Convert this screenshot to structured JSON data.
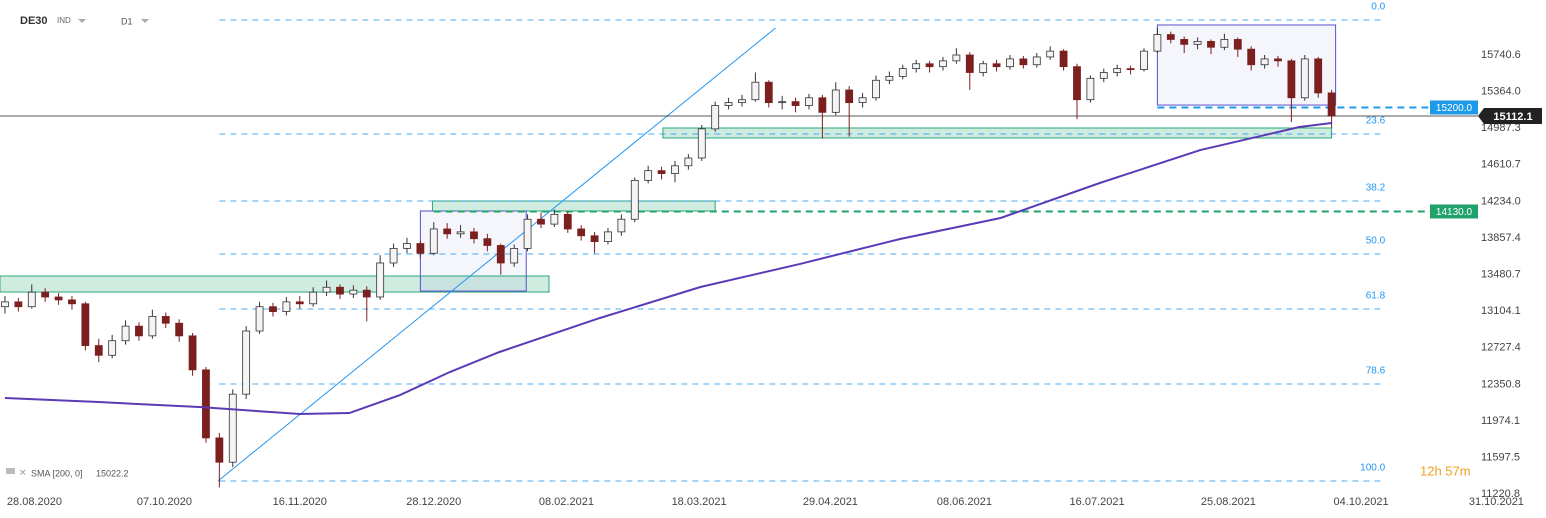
{
  "chart_data": {
    "type": "candlestick",
    "title": "DE30",
    "instrument_type": "IND",
    "timeframe": "D1",
    "xlim": [
      -0.37,
      115.0
    ],
    "xticks": [
      {
        "value": 2.2,
        "label": "28.08.2020"
      },
      {
        "value": 11.9,
        "label": "07.10.2020"
      },
      {
        "value": 22,
        "label": "16.11.2020"
      },
      {
        "value": 32,
        "label": "28.12.2020"
      },
      {
        "value": 41.9,
        "label": "08.02.2021"
      },
      {
        "value": 51.8,
        "label": "18.03.2021"
      },
      {
        "value": 61.6,
        "label": "29.04.2021"
      },
      {
        "value": 71.6,
        "label": "08.06.2021"
      },
      {
        "value": 81.5,
        "label": "16.07.2021"
      },
      {
        "value": 91.3,
        "label": "25.08.2021"
      },
      {
        "value": 101.2,
        "label": "04.10.2021"
      },
      {
        "value": 111.3,
        "label": "31.10.2021"
      }
    ],
    "ylim": [
      11264,
      16306
    ],
    "yticks": [
      15740.6,
      {
        "value": 15364,
        "label": "15364.0"
      },
      14987.3,
      14610.7,
      {
        "value": 14234,
        "label": "14234.0"
      },
      13857.4,
      13480.7,
      13104.1,
      12727.4,
      12350.8,
      11974.1,
      11597.5,
      11220.8
    ],
    "up_color": "#f4f4f4",
    "down_color": "#7b1f1f",
    "candles": {
      "open": [
        13150,
        13200,
        13150,
        13300,
        13250,
        13220,
        13180,
        12750,
        12650,
        12800,
        12950,
        12850,
        13050,
        12980,
        12850,
        12500,
        11800,
        11550,
        12250,
        12900,
        13150,
        13100,
        13200,
        13180,
        13300,
        13350,
        13280,
        13320,
        13250,
        13600,
        13750,
        13800,
        13700,
        13950,
        13900,
        13920,
        13850,
        13780,
        13600,
        13750,
        14050,
        14000,
        14100,
        13950,
        13880,
        13820,
        13920,
        14050,
        14450,
        14550,
        14520,
        14600,
        14680,
        14980,
        15220,
        15250,
        15280,
        15460,
        15250,
        15260,
        15220,
        15300,
        15150,
        15380,
        15250,
        15300,
        15480,
        15520,
        15600,
        15650,
        15620,
        15680,
        15740,
        15560,
        15650,
        15620,
        15700,
        15640,
        15720,
        15780,
        15620,
        15280,
        15500,
        15560,
        15600,
        15590,
        15780,
        15950,
        15900,
        15850,
        15880,
        15820,
        15900,
        15800,
        15640,
        15700,
        15680,
        15300,
        15700,
        15350
      ],
      "high": [
        13260,
        13240,
        13380,
        13340,
        13290,
        13260,
        13200,
        12820,
        12860,
        13010,
        12990,
        13120,
        13090,
        13020,
        12880,
        12530,
        11850,
        12300,
        12950,
        13200,
        13190,
        13250,
        13260,
        13350,
        13420,
        13380,
        13370,
        13360,
        13680,
        13800,
        13860,
        13830,
        14020,
        14010,
        13990,
        13960,
        13900,
        13800,
        13790,
        14100,
        14120,
        14150,
        14130,
        13990,
        13920,
        13960,
        14100,
        14480,
        14600,
        14590,
        14650,
        14720,
        15020,
        15260,
        15300,
        15330,
        15560,
        15480,
        15320,
        15300,
        15340,
        15330,
        15460,
        15420,
        15350,
        15530,
        15570,
        15640,
        15690,
        15680,
        15720,
        15810,
        15770,
        15680,
        15690,
        15740,
        15730,
        15760,
        15830,
        15800,
        15650,
        15530,
        15600,
        15640,
        15630,
        15810,
        16020,
        15980,
        15930,
        15920,
        15900,
        15960,
        15920,
        15830,
        15740,
        15730,
        15700,
        15740,
        15720,
        15380
      ],
      "low": [
        13080,
        13100,
        13130,
        13200,
        13170,
        13120,
        12700,
        12580,
        12620,
        12760,
        12800,
        12820,
        12930,
        12790,
        12440,
        11750,
        11290,
        11500,
        12200,
        12870,
        13050,
        13060,
        13130,
        13150,
        13260,
        13230,
        13240,
        13000,
        13220,
        13560,
        13700,
        13650,
        13680,
        13850,
        13860,
        13800,
        13720,
        13480,
        13560,
        13720,
        13960,
        13970,
        13910,
        13830,
        13700,
        13790,
        13880,
        14020,
        14420,
        14460,
        14430,
        14560,
        14650,
        14950,
        15180,
        15210,
        15260,
        15200,
        15180,
        15150,
        15180,
        14880,
        15120,
        14900,
        15200,
        15270,
        15440,
        15490,
        15560,
        15560,
        15580,
        15650,
        15380,
        15520,
        15570,
        15590,
        15600,
        15610,
        15690,
        15580,
        15080,
        15250,
        15460,
        15520,
        15540,
        15570,
        15760,
        15860,
        15760,
        15800,
        15750,
        15790,
        15720,
        15580,
        15600,
        15620,
        15050,
        15270,
        15300,
        14990
      ],
      "close": [
        13200,
        13150,
        13300,
        13250,
        13220,
        13180,
        12750,
        12650,
        12800,
        12950,
        12850,
        13050,
        12980,
        12850,
        12500,
        11800,
        11550,
        12250,
        12900,
        13150,
        13100,
        13200,
        13180,
        13300,
        13350,
        13280,
        13320,
        13250,
        13600,
        13750,
        13800,
        13700,
        13950,
        13900,
        13920,
        13850,
        13780,
        13600,
        13750,
        14050,
        14000,
        14100,
        13950,
        13880,
        13820,
        13920,
        14050,
        14450,
        14550,
        14520,
        14600,
        14680,
        14980,
        15220,
        15250,
        15280,
        15460,
        15250,
        15260,
        15220,
        15300,
        15150,
        15380,
        15250,
        15300,
        15480,
        15520,
        15600,
        15650,
        15620,
        15680,
        15740,
        15560,
        15650,
        15620,
        15700,
        15640,
        15720,
        15780,
        15620,
        15280,
        15500,
        15560,
        15600,
        15590,
        15780,
        15950,
        15900,
        15850,
        15880,
        15820,
        15900,
        15800,
        15640,
        15700,
        15680,
        15300,
        15700,
        15350,
        15112.1
      ]
    },
    "sma": {
      "label": "SMA [200, 0]",
      "last_value": 15022.2,
      "color": "#5b3bb5",
      "x": [
        0,
        7,
        14.5,
        22,
        25.7,
        29.5,
        33.2,
        36.9,
        44.4,
        51.9,
        59.3,
        66.8,
        74.3,
        81.7,
        89.2,
        96.6,
        99
      ],
      "values": [
        12211,
        12169,
        12118,
        12046,
        12056,
        12242,
        12478,
        12684,
        13034,
        13353,
        13589,
        13847,
        14063,
        14423,
        14762,
        14999,
        15040
      ]
    },
    "fibonacci": {
      "color": "#2196f3",
      "x": [
        16,
        103
      ],
      "levels": [
        {
          "label": "0.0",
          "value": 16100
        },
        {
          "label": "23.6",
          "value": 14927
        },
        {
          "label": "38.2",
          "value": 14238
        },
        {
          "label": "50.0",
          "value": 13692
        },
        {
          "label": "61.8",
          "value": 13126
        },
        {
          "label": "78.6",
          "value": 12355
        },
        {
          "label": "100.0",
          "value": 11357
        }
      ]
    },
    "trendline": {
      "color": "#2196f3",
      "x": [
        15.9,
        57.5
      ],
      "values": [
        11357,
        16018
      ]
    },
    "zones": [
      {
        "color": "#2aa876",
        "x": [
          -0.37,
          40.6
        ],
        "y": [
          13301,
          13466
        ]
      },
      {
        "color": "#2aa876",
        "x": [
          31.9,
          53
        ],
        "y": [
          14135,
          14238
        ]
      },
      {
        "color": "#2aa876",
        "x": [
          49.1,
          99
        ],
        "y": [
          14886,
          14989
        ]
      },
      {
        "color": "#5a4fcf",
        "x": [
          31,
          38.9
        ],
        "y": [
          13311,
          14135
        ]
      },
      {
        "color": "#5a4fcf",
        "x": [
          86,
          99.3
        ],
        "y": [
          15225,
          16049
        ]
      }
    ],
    "price_lines": [
      {
        "value": 15200,
        "label": "15200.0",
        "color": "#1e9be8",
        "x_start": 86
      },
      {
        "value": 14130,
        "label": "14130.0",
        "color": "#1fa36a",
        "x_start": 32
      }
    ],
    "current_price": {
      "value": 15112.1,
      "color": "#222222"
    },
    "timer": "12h 57m"
  }
}
